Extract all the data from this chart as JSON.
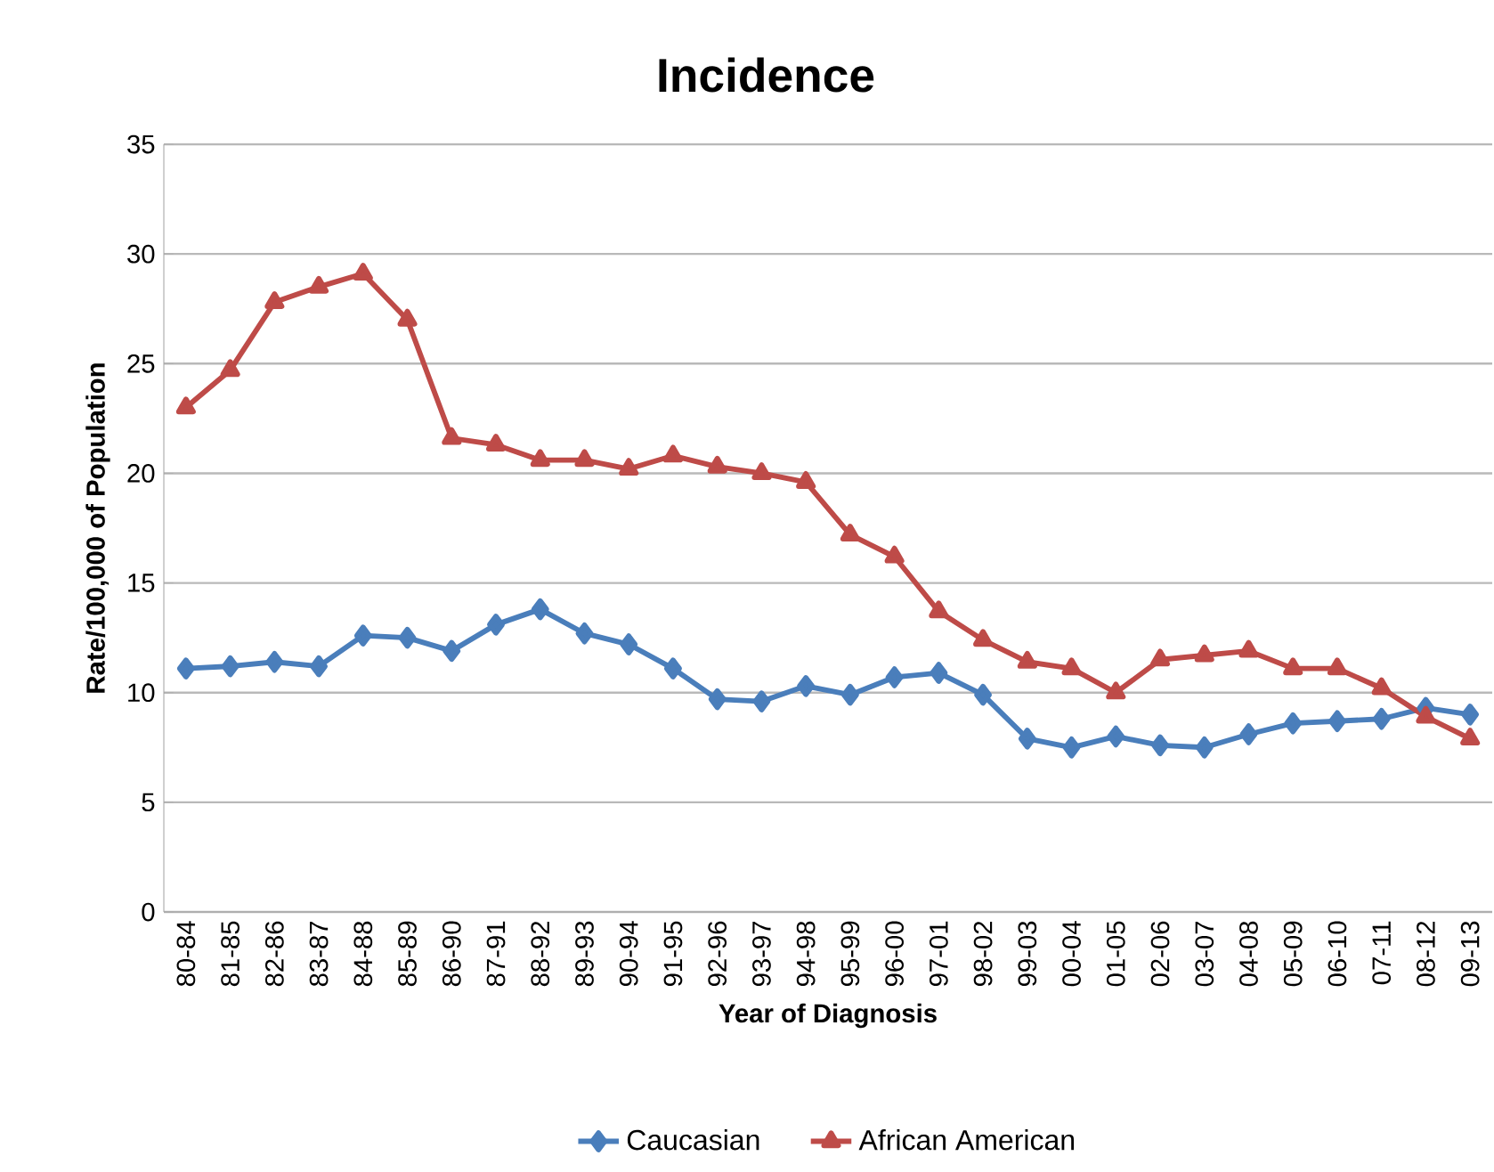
{
  "chart_data": {
    "type": "line",
    "title": "Incidence",
    "xlabel": "Year of Diagnosis",
    "ylabel": "Rate/100,000 of Population",
    "categories": [
      "80-84",
      "81-85",
      "82-86",
      "83-87",
      "84-88",
      "85-89",
      "86-90",
      "87-91",
      "88-92",
      "89-93",
      "90-94",
      "91-95",
      "92-96",
      "93-97",
      "94-98",
      "95-99",
      "96-00",
      "97-01",
      "98-02",
      "99-03",
      "00-04",
      "01-05",
      "02-06",
      "03-07",
      "04-08",
      "05-09",
      "06-10",
      "07-11",
      "08-12",
      "09-13"
    ],
    "series": [
      {
        "name": "Caucasian",
        "color": "#4a7ebb",
        "marker": "diamond",
        "values": [
          11.1,
          11.2,
          11.4,
          11.2,
          12.6,
          12.5,
          11.9,
          13.1,
          13.8,
          12.7,
          12.2,
          11.1,
          9.7,
          9.6,
          10.3,
          9.9,
          10.7,
          10.9,
          9.9,
          7.9,
          7.5,
          8.0,
          7.6,
          7.5,
          8.1,
          8.6,
          8.7,
          8.8,
          9.3,
          9.0
        ]
      },
      {
        "name": "African American",
        "color": "#be4b48",
        "marker": "triangle",
        "values": [
          23.0,
          24.7,
          27.8,
          28.5,
          29.1,
          27.0,
          21.6,
          21.3,
          20.6,
          20.6,
          20.2,
          20.8,
          20.3,
          20.0,
          19.6,
          17.2,
          16.2,
          13.7,
          12.4,
          11.4,
          11.1,
          10.0,
          11.5,
          11.7,
          11.9,
          11.1,
          11.1,
          10.2,
          8.9,
          7.9
        ]
      }
    ],
    "ylim": [
      0,
      35
    ],
    "yticks": [
      0,
      5,
      10,
      15,
      20,
      25,
      30,
      35
    ],
    "grid": "y",
    "legend": "bottom",
    "line_style": "solid"
  }
}
